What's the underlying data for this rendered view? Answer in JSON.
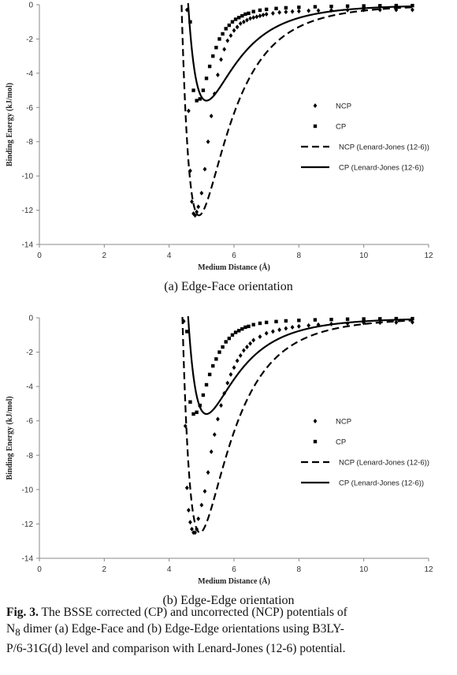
{
  "caption": {
    "label": "Fig. 3.",
    "line1": " The BSSE corrected (CP) and uncorrected (NCP) potentials of",
    "line2_prefix": "N",
    "line2_sub": "8",
    "line2_rest": " dimer (a) Edge-Face and (b) Edge-Edge orientations using B3LY-",
    "line3": "P/6-31G(d) level and comparison with Lenard-Jones (12-6) potential."
  },
  "chart_data": [
    {
      "type": "scatter",
      "subtitle": "(a) Edge-Face orientation",
      "xlabel": "Medium  Distance (Å)",
      "ylabel": "Binding  Energy (kJ/mol)",
      "xlim": [
        0,
        12
      ],
      "ylim": [
        -14,
        0
      ],
      "xticks": [
        "0",
        "2",
        "4",
        "6",
        "8",
        "10",
        "12"
      ],
      "yticks": [
        "0",
        "-2",
        "-4",
        "-6",
        "-8",
        "-10",
        "-12",
        "-14"
      ],
      "grid": false,
      "legend_position": "right",
      "series": [
        {
          "name": "NCP",
          "marker": "diamond",
          "x": [
            4.55,
            4.6,
            4.65,
            4.7,
            4.75,
            4.8,
            4.85,
            4.9,
            5.0,
            5.1,
            5.2,
            5.3,
            5.4,
            5.5,
            5.6,
            5.7,
            5.8,
            5.9,
            6.0,
            6.1,
            6.2,
            6.3,
            6.4,
            6.5,
            6.6,
            6.7,
            6.8,
            6.9,
            7.0,
            7.2,
            7.4,
            7.6,
            7.8,
            8.0,
            8.3,
            8.6,
            9.0,
            9.5,
            10.0,
            10.5,
            11.0,
            11.5
          ],
          "y": [
            -0.3,
            -6.2,
            -9.7,
            -11.5,
            -12.2,
            -12.3,
            -12.1,
            -11.8,
            -11.0,
            -9.6,
            -8.0,
            -6.5,
            -5.2,
            -4.1,
            -3.2,
            -2.6,
            -2.1,
            -1.8,
            -1.5,
            -1.3,
            -1.1,
            -1.0,
            -0.9,
            -0.8,
            -0.75,
            -0.7,
            -0.65,
            -0.6,
            -0.55,
            -0.5,
            -0.45,
            -0.42,
            -0.4,
            -0.38,
            -0.35,
            -0.34,
            -0.32,
            -0.31,
            -0.3,
            -0.3,
            -0.3,
            -0.3
          ]
        },
        {
          "name": "CP",
          "marker": "square",
          "x": [
            4.65,
            4.75,
            4.85,
            4.95,
            5.05,
            5.15,
            5.25,
            5.35,
            5.45,
            5.55,
            5.65,
            5.75,
            5.85,
            5.95,
            6.05,
            6.15,
            6.25,
            6.35,
            6.45,
            6.6,
            6.8,
            7.0,
            7.3,
            7.6,
            8.0,
            8.5,
            9.0,
            9.5,
            10.0,
            10.5,
            11.0,
            11.5
          ],
          "y": [
            -1.0,
            -5.0,
            -5.6,
            -5.5,
            -5.0,
            -4.3,
            -3.6,
            -3.0,
            -2.5,
            -2.0,
            -1.7,
            -1.4,
            -1.2,
            -1.0,
            -0.85,
            -0.75,
            -0.65,
            -0.55,
            -0.5,
            -0.4,
            -0.32,
            -0.27,
            -0.22,
            -0.18,
            -0.15,
            -0.12,
            -0.1,
            -0.08,
            -0.07,
            -0.06,
            -0.05,
            -0.05
          ]
        },
        {
          "name": "NCP (Lenard-Jones (12-6))",
          "line": "dashed",
          "lj": {
            "depth": 12.3,
            "rmin": 4.92
          }
        },
        {
          "name": "CP (Lenard-Jones (12-6))",
          "line": "solid",
          "lj": {
            "depth": 5.6,
            "rmin": 5.15
          }
        }
      ]
    },
    {
      "type": "scatter",
      "subtitle": "(b) Edge-Edge orientation",
      "xlabel": "Medium  Distance (Å)",
      "ylabel": "Binding  Energy (kJ/mol)",
      "xlim": [
        0,
        12
      ],
      "ylim": [
        -14,
        0
      ],
      "xticks": [
        "0",
        "2",
        "4",
        "6",
        "8",
        "10",
        "12"
      ],
      "yticks": [
        "0",
        "-2",
        "-4",
        "-6",
        "-8",
        "-10",
        "-12",
        "-14"
      ],
      "grid": false,
      "legend_position": "right",
      "series": [
        {
          "name": "NCP",
          "marker": "diamond",
          "x": [
            4.45,
            4.5,
            4.55,
            4.6,
            4.65,
            4.7,
            4.75,
            4.8,
            4.85,
            4.9,
            5.0,
            5.1,
            5.2,
            5.3,
            5.4,
            5.5,
            5.6,
            5.7,
            5.8,
            5.9,
            6.0,
            6.1,
            6.2,
            6.3,
            6.4,
            6.5,
            6.6,
            6.8,
            7.0,
            7.2,
            7.4,
            7.6,
            7.8,
            8.0,
            8.3,
            8.6,
            9.0,
            9.5,
            10.0,
            10.5,
            11.0,
            11.5
          ],
          "y": [
            -0.2,
            -6.3,
            -9.9,
            -11.2,
            -11.9,
            -12.3,
            -12.5,
            -12.5,
            -12.3,
            -11.7,
            -10.9,
            -10.1,
            -9.0,
            -7.8,
            -6.8,
            -5.9,
            -5.1,
            -4.4,
            -3.8,
            -3.3,
            -2.9,
            -2.5,
            -2.2,
            -1.9,
            -1.7,
            -1.5,
            -1.3,
            -1.1,
            -0.9,
            -0.8,
            -0.7,
            -0.62,
            -0.55,
            -0.5,
            -0.45,
            -0.4,
            -0.36,
            -0.33,
            -0.3,
            -0.28,
            -0.27,
            -0.26
          ]
        },
        {
          "name": "CP",
          "marker": "square",
          "x": [
            4.55,
            4.65,
            4.75,
            4.85,
            4.95,
            5.05,
            5.15,
            5.25,
            5.35,
            5.45,
            5.55,
            5.65,
            5.75,
            5.85,
            5.95,
            6.05,
            6.15,
            6.25,
            6.35,
            6.45,
            6.6,
            6.8,
            7.0,
            7.3,
            7.6,
            8.0,
            8.5,
            9.0,
            9.5,
            10.0,
            10.5,
            11.0,
            11.5
          ],
          "y": [
            -0.8,
            -4.9,
            -5.6,
            -5.5,
            -5.1,
            -4.5,
            -3.9,
            -3.3,
            -2.8,
            -2.4,
            -2.0,
            -1.7,
            -1.4,
            -1.2,
            -1.0,
            -0.85,
            -0.75,
            -0.65,
            -0.55,
            -0.5,
            -0.4,
            -0.32,
            -0.27,
            -0.22,
            -0.18,
            -0.15,
            -0.12,
            -0.1,
            -0.08,
            -0.07,
            -0.06,
            -0.05,
            -0.05
          ]
        },
        {
          "name": "NCP (Lenard-Jones (12-6))",
          "line": "dashed",
          "lj": {
            "depth": 12.5,
            "rmin": 4.95
          }
        },
        {
          "name": "CP (Lenard-Jones (12-6))",
          "line": "solid",
          "lj": {
            "depth": 5.6,
            "rmin": 5.15
          }
        }
      ]
    }
  ]
}
